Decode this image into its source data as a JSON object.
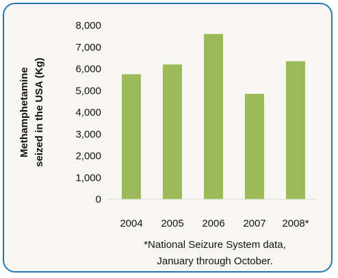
{
  "chart_data": {
    "type": "bar",
    "title": "",
    "xlabel": "",
    "ylabel_lines": [
      "Methamphetamine",
      "seized in the USA (Kg)"
    ],
    "categories": [
      "2004",
      "2005",
      "2006",
      "2007",
      "2008*"
    ],
    "series": [
      {
        "values": [
          5750,
          6200,
          7600,
          4850,
          6350
        ]
      }
    ],
    "ylim": [
      0,
      8000
    ],
    "yticks": [
      0,
      1000,
      2000,
      3000,
      4000,
      5000,
      6000,
      7000,
      8000
    ],
    "ytick_labels": [
      "0",
      "1,000",
      "2,000",
      "3,000",
      "4,000",
      "5,000",
      "6,000",
      "7,000",
      "8,000"
    ],
    "grid": false,
    "legend": "none",
    "bar_color": "#9bbb59",
    "footnote_lines": [
      "*National Seizure System data,",
      "January through October."
    ]
  }
}
